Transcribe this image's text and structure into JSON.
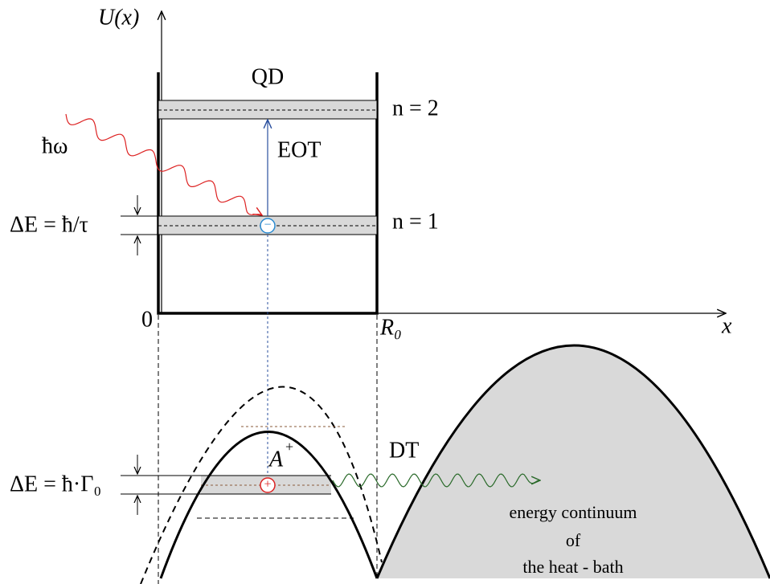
{
  "axes": {
    "y_label": "U(x)",
    "x_label": "x",
    "origin": "0",
    "well_edge": "R₀"
  },
  "quantum_dot": {
    "label": "QD",
    "photon": "ħω",
    "transition": "EOT",
    "levels": [
      {
        "label": "n = 2"
      },
      {
        "label": "n = 1",
        "width_label": "ΔE = ħ/τ",
        "charge": "−"
      }
    ]
  },
  "acceptor": {
    "label": "A",
    "superscript": "+",
    "width_label": "ΔE = ħ·Γ₀",
    "charge": "+",
    "transition": "DT"
  },
  "continuum": {
    "lines": [
      "energy continuum",
      "of",
      "the heat - bath"
    ]
  }
}
